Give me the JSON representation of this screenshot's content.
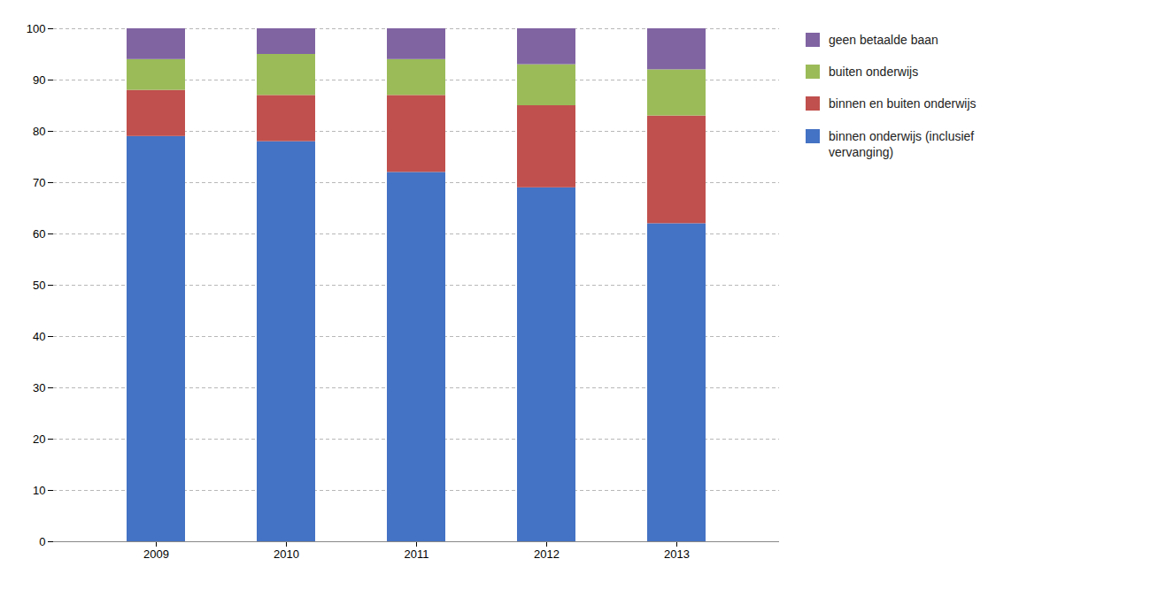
{
  "chart_data": {
    "type": "bar",
    "stacked": true,
    "categories": [
      "2009",
      "2010",
      "2011",
      "2012",
      "2013"
    ],
    "series": [
      {
        "name": "binnen onderwijs (inclusief\nvervanging)",
        "color": "#4472C4",
        "values": [
          79,
          78,
          72,
          69,
          62
        ]
      },
      {
        "name": "binnen en buiten onderwijs",
        "color": "#C0504D",
        "values": [
          9,
          9,
          15,
          16,
          21
        ]
      },
      {
        "name": "buiten onderwijs",
        "color": "#9BBB59",
        "values": [
          6,
          8,
          7,
          8,
          9
        ]
      },
      {
        "name": "geen betaalde baan",
        "color": "#8064A2",
        "values": [
          6,
          5,
          6,
          7,
          8
        ]
      }
    ],
    "ylim": [
      0,
      100
    ],
    "yticks": [
      0,
      10,
      20,
      30,
      40,
      50,
      60,
      70,
      80,
      90,
      100
    ],
    "grid": true,
    "legend": "upper right"
  }
}
